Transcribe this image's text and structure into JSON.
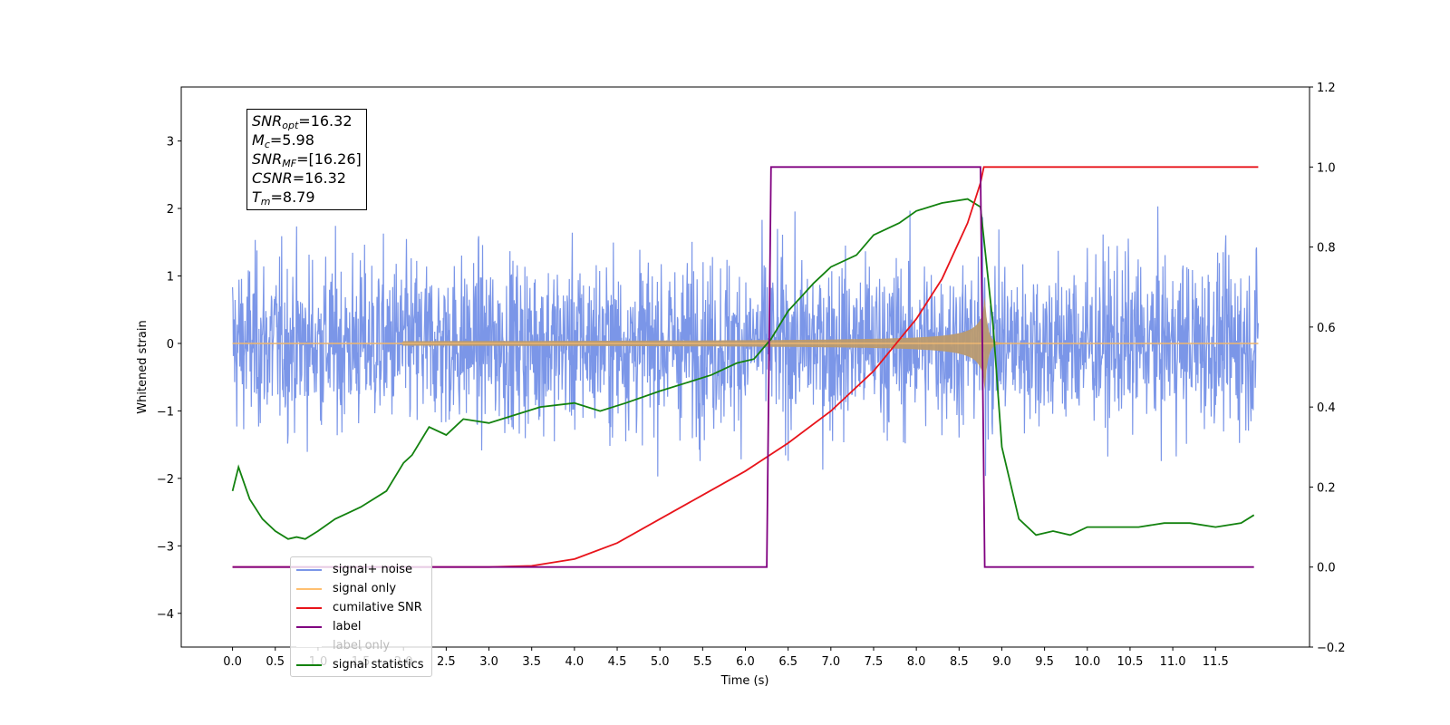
{
  "chart_data": {
    "type": "line",
    "xlabel": "Time (s)",
    "ylabel": "Whitened strain",
    "xlim": [
      -0.6,
      12.6
    ],
    "ylim": [
      -4.5,
      3.8
    ],
    "y2lim": [
      -0.2,
      1.2
    ],
    "x_ticks": [
      "0.0",
      "0.5",
      "1.0",
      "1.5",
      "2.0",
      "2.5",
      "3.0",
      "3.5",
      "4.0",
      "4.5",
      "5.0",
      "5.5",
      "6.0",
      "6.5",
      "7.0",
      "7.5",
      "8.0",
      "8.5",
      "9.0",
      "9.5",
      "10.0",
      "10.5",
      "11.0",
      "11.5"
    ],
    "y_ticks": [
      "−4",
      "−3",
      "−2",
      "−1",
      "0",
      "1",
      "2",
      "3"
    ],
    "y2_ticks": [
      "−0.2",
      "0.0",
      "0.2",
      "0.4",
      "0.6",
      "0.8",
      "1.0",
      "1.2"
    ],
    "annotations": {
      "snr_opt": {
        "base": "SNR",
        "sub": "opt",
        "value": "=16.32"
      },
      "mc": {
        "base": "M",
        "sub": "c",
        "value": "=5.98"
      },
      "snr_mf": {
        "base": "SNR",
        "sub": "MF",
        "value": "=[16.26]"
      },
      "csnr": {
        "base": "CSNR",
        "sub": "",
        "value": "=16.32"
      },
      "tm": {
        "base": "T",
        "sub": "m",
        "value": "=8.79"
      }
    },
    "series": [
      {
        "name": "signal+ noise",
        "color": "#7b96e8",
        "axis": "left",
        "noise_std": 0.95,
        "x_start": 0.0,
        "x_end": 12.0
      },
      {
        "name": "signal only",
        "color": "#ffc070",
        "fill": "#b99a70",
        "axis": "left",
        "amp_start": 0.02,
        "amp_peak": 0.9,
        "merger": 8.79
      },
      {
        "name": "cumilative SNR",
        "color": "#e8141b",
        "axis": "right",
        "x": [
          0,
          3,
          3.5,
          4,
          4.5,
          5,
          5.5,
          6,
          6.5,
          7,
          7.5,
          8,
          8.3,
          8.6,
          8.75,
          8.79,
          12.0
        ],
        "y": [
          0,
          0,
          0.003,
          0.02,
          0.06,
          0.12,
          0.18,
          0.24,
          0.31,
          0.39,
          0.49,
          0.62,
          0.72,
          0.86,
          0.96,
          1.0,
          1.0
        ]
      },
      {
        "name": "label",
        "color": "#800080",
        "axis": "right",
        "x": [
          0,
          6.25,
          6.3,
          8.75,
          8.8,
          11.95
        ],
        "y": [
          0,
          0,
          1,
          1,
          0,
          0
        ]
      },
      {
        "name": "label only",
        "color": "#ffffff",
        "axis": "right",
        "x": [],
        "y": []
      },
      {
        "name": "signal statistics",
        "color": "#13820f",
        "axis": "right",
        "x": [
          0,
          0.07,
          0.2,
          0.35,
          0.5,
          0.65,
          0.75,
          0.85,
          1.0,
          1.2,
          1.5,
          1.8,
          2.0,
          2.1,
          2.3,
          2.5,
          2.7,
          3.0,
          3.3,
          3.6,
          4.0,
          4.3,
          4.6,
          5.0,
          5.3,
          5.6,
          5.9,
          6.1,
          6.3,
          6.5,
          6.8,
          7.0,
          7.3,
          7.5,
          7.8,
          8.0,
          8.3,
          8.6,
          8.75,
          8.9,
          9.0,
          9.2,
          9.4,
          9.6,
          9.8,
          10.0,
          10.3,
          10.6,
          10.9,
          11.2,
          11.5,
          11.8,
          11.95
        ],
        "y": [
          0.19,
          0.25,
          0.17,
          0.12,
          0.09,
          0.07,
          0.075,
          0.07,
          0.09,
          0.12,
          0.15,
          0.19,
          0.26,
          0.28,
          0.35,
          0.33,
          0.37,
          0.36,
          0.38,
          0.4,
          0.41,
          0.39,
          0.41,
          0.44,
          0.46,
          0.48,
          0.51,
          0.52,
          0.57,
          0.64,
          0.71,
          0.75,
          0.78,
          0.83,
          0.86,
          0.89,
          0.91,
          0.92,
          0.9,
          0.6,
          0.3,
          0.12,
          0.08,
          0.09,
          0.08,
          0.1,
          0.1,
          0.1,
          0.11,
          0.11,
          0.1,
          0.11,
          0.13
        ]
      }
    ]
  }
}
